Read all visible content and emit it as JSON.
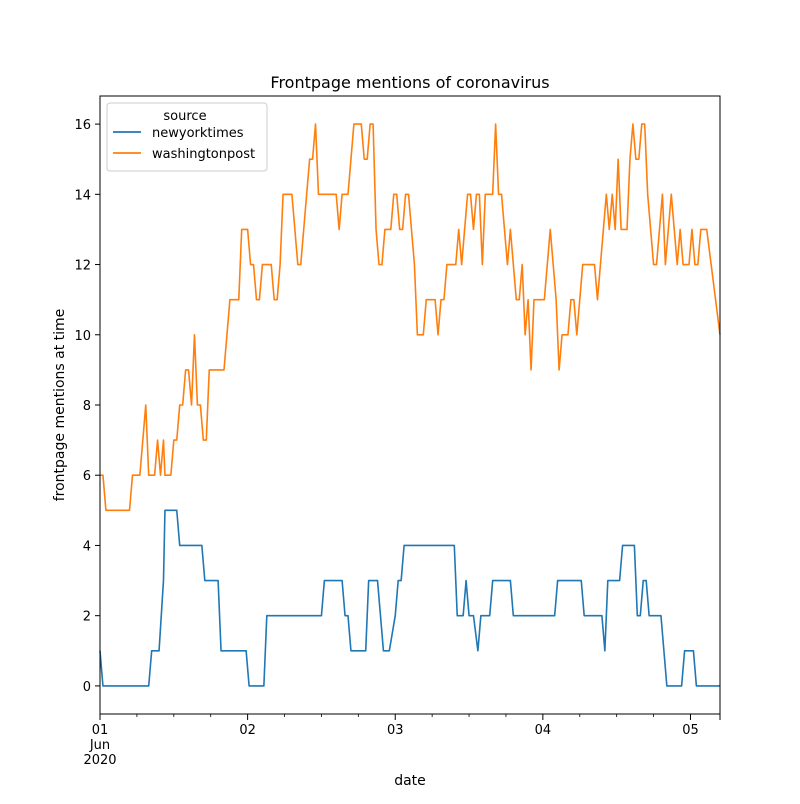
{
  "chart_data": {
    "type": "line",
    "title": "Frontpage mentions of coronavirus",
    "xlabel": "date",
    "ylabel": "frontpage mentions at time",
    "xlim": [
      0,
      4.2
    ],
    "ylim": [
      -0.8,
      16.8
    ],
    "grid": false,
    "legend": {
      "title": "source",
      "placement": "top-left",
      "entries": [
        "newyorktimes",
        "washingtonpost"
      ]
    },
    "x_ticks": [
      {
        "x": 0,
        "lines": [
          "01",
          "Jun",
          "2020"
        ]
      },
      {
        "x": 1,
        "lines": [
          "02"
        ]
      },
      {
        "x": 2,
        "lines": [
          "03"
        ]
      },
      {
        "x": 3,
        "lines": [
          "04"
        ]
      },
      {
        "x": 4,
        "lines": [
          "05"
        ]
      }
    ],
    "y_ticks": [
      0,
      2,
      4,
      6,
      8,
      10,
      12,
      14,
      16
    ],
    "series": [
      {
        "name": "newyorktimes",
        "color": "#1f77b4",
        "points": [
          [
            0.0,
            1
          ],
          [
            0.02,
            0
          ],
          [
            0.13,
            0
          ],
          [
            0.2,
            0
          ],
          [
            0.3,
            0
          ],
          [
            0.33,
            0
          ],
          [
            0.35,
            1
          ],
          [
            0.4,
            1
          ],
          [
            0.43,
            3
          ],
          [
            0.44,
            5
          ],
          [
            0.52,
            5
          ],
          [
            0.54,
            4
          ],
          [
            0.6,
            4
          ],
          [
            0.69,
            4
          ],
          [
            0.71,
            3
          ],
          [
            0.8,
            3
          ],
          [
            0.82,
            1
          ],
          [
            0.89,
            1
          ],
          [
            0.99,
            1
          ],
          [
            1.01,
            0
          ],
          [
            1.11,
            0
          ],
          [
            1.13,
            2
          ],
          [
            1.2,
            2
          ],
          [
            1.3,
            2
          ],
          [
            1.4,
            2
          ],
          [
            1.5,
            2
          ],
          [
            1.52,
            3
          ],
          [
            1.6,
            3
          ],
          [
            1.64,
            3
          ],
          [
            1.66,
            2
          ],
          [
            1.68,
            2
          ],
          [
            1.7,
            1
          ],
          [
            1.76,
            1
          ],
          [
            1.8,
            1
          ],
          [
            1.82,
            3
          ],
          [
            1.86,
            3
          ],
          [
            1.88,
            3
          ],
          [
            1.92,
            1
          ],
          [
            1.96,
            1
          ],
          [
            2.0,
            2
          ],
          [
            2.02,
            3
          ],
          [
            2.04,
            3
          ],
          [
            2.06,
            4
          ],
          [
            2.1,
            4
          ],
          [
            2.2,
            4
          ],
          [
            2.3,
            4
          ],
          [
            2.4,
            4
          ],
          [
            2.42,
            2
          ],
          [
            2.46,
            2
          ],
          [
            2.48,
            3
          ],
          [
            2.5,
            2
          ],
          [
            2.53,
            2
          ],
          [
            2.56,
            1
          ],
          [
            2.58,
            2
          ],
          [
            2.6,
            2
          ],
          [
            2.64,
            2
          ],
          [
            2.66,
            3
          ],
          [
            2.76,
            3
          ],
          [
            2.78,
            3
          ],
          [
            2.8,
            2
          ],
          [
            2.9,
            2
          ],
          [
            3.0,
            2
          ],
          [
            3.08,
            2
          ],
          [
            3.1,
            3
          ],
          [
            3.2,
            3
          ],
          [
            3.26,
            3
          ],
          [
            3.28,
            2
          ],
          [
            3.34,
            2
          ],
          [
            3.4,
            2
          ],
          [
            3.42,
            1
          ],
          [
            3.44,
            3
          ],
          [
            3.52,
            3
          ],
          [
            3.54,
            4
          ],
          [
            3.62,
            4
          ],
          [
            3.64,
            2
          ],
          [
            3.66,
            2
          ],
          [
            3.68,
            3
          ],
          [
            3.7,
            3
          ],
          [
            3.72,
            2
          ],
          [
            3.8,
            2
          ],
          [
            3.84,
            0
          ],
          [
            3.9,
            0
          ],
          [
            3.94,
            0
          ],
          [
            3.96,
            1
          ],
          [
            4.02,
            1
          ],
          [
            4.04,
            0
          ],
          [
            4.12,
            0
          ],
          [
            4.2,
            0
          ]
        ]
      },
      {
        "name": "washingtonpost",
        "color": "#ff7f0e",
        "points": [
          [
            0.0,
            6
          ],
          [
            0.02,
            6
          ],
          [
            0.04,
            5
          ],
          [
            0.1,
            5
          ],
          [
            0.2,
            5
          ],
          [
            0.22,
            6
          ],
          [
            0.27,
            6
          ],
          [
            0.31,
            8
          ],
          [
            0.33,
            6
          ],
          [
            0.37,
            6
          ],
          [
            0.39,
            7
          ],
          [
            0.41,
            6
          ],
          [
            0.43,
            7
          ],
          [
            0.44,
            6
          ],
          [
            0.48,
            6
          ],
          [
            0.5,
            7
          ],
          [
            0.52,
            7
          ],
          [
            0.54,
            8
          ],
          [
            0.56,
            8
          ],
          [
            0.58,
            9
          ],
          [
            0.6,
            9
          ],
          [
            0.62,
            8
          ],
          [
            0.64,
            10
          ],
          [
            0.66,
            8
          ],
          [
            0.68,
            8
          ],
          [
            0.7,
            7
          ],
          [
            0.72,
            7
          ],
          [
            0.74,
            9
          ],
          [
            0.84,
            9
          ],
          [
            0.88,
            11
          ],
          [
            0.94,
            11
          ],
          [
            0.96,
            13
          ],
          [
            1.0,
            13
          ],
          [
            1.02,
            12
          ],
          [
            1.04,
            12
          ],
          [
            1.06,
            11
          ],
          [
            1.08,
            11
          ],
          [
            1.1,
            12
          ],
          [
            1.16,
            12
          ],
          [
            1.18,
            11
          ],
          [
            1.2,
            11
          ],
          [
            1.22,
            12
          ],
          [
            1.24,
            14
          ],
          [
            1.3,
            14
          ],
          [
            1.32,
            13
          ],
          [
            1.34,
            12
          ],
          [
            1.36,
            12
          ],
          [
            1.38,
            13
          ],
          [
            1.42,
            15
          ],
          [
            1.44,
            15
          ],
          [
            1.46,
            16
          ],
          [
            1.48,
            14
          ],
          [
            1.6,
            14
          ],
          [
            1.62,
            13
          ],
          [
            1.64,
            14
          ],
          [
            1.68,
            14
          ],
          [
            1.72,
            16
          ],
          [
            1.77,
            16
          ],
          [
            1.79,
            15
          ],
          [
            1.81,
            15
          ],
          [
            1.83,
            16
          ],
          [
            1.85,
            16
          ],
          [
            1.87,
            13
          ],
          [
            1.89,
            12
          ],
          [
            1.91,
            12
          ],
          [
            1.93,
            13
          ],
          [
            1.97,
            13
          ],
          [
            1.99,
            14
          ],
          [
            2.01,
            14
          ],
          [
            2.03,
            13
          ],
          [
            2.05,
            13
          ],
          [
            2.07,
            14
          ],
          [
            2.09,
            14
          ],
          [
            2.11,
            13
          ],
          [
            2.13,
            12
          ],
          [
            2.15,
            10
          ],
          [
            2.19,
            10
          ],
          [
            2.21,
            11
          ],
          [
            2.27,
            11
          ],
          [
            2.29,
            10
          ],
          [
            2.31,
            11
          ],
          [
            2.33,
            11
          ],
          [
            2.35,
            12
          ],
          [
            2.41,
            12
          ],
          [
            2.43,
            13
          ],
          [
            2.45,
            12
          ],
          [
            2.49,
            14
          ],
          [
            2.51,
            14
          ],
          [
            2.53,
            13
          ],
          [
            2.55,
            14
          ],
          [
            2.57,
            14
          ],
          [
            2.59,
            12
          ],
          [
            2.61,
            14
          ],
          [
            2.66,
            14
          ],
          [
            2.68,
            16
          ],
          [
            2.7,
            14
          ],
          [
            2.72,
            14
          ],
          [
            2.74,
            13
          ],
          [
            2.76,
            12
          ],
          [
            2.78,
            13
          ],
          [
            2.8,
            12
          ],
          [
            2.82,
            11
          ],
          [
            2.84,
            11
          ],
          [
            2.86,
            12
          ],
          [
            2.88,
            10
          ],
          [
            2.9,
            11
          ],
          [
            2.92,
            9
          ],
          [
            2.94,
            11
          ],
          [
            3.01,
            11
          ],
          [
            3.03,
            12
          ],
          [
            3.05,
            13
          ],
          [
            3.07,
            12
          ],
          [
            3.09,
            11
          ],
          [
            3.11,
            9
          ],
          [
            3.13,
            10
          ],
          [
            3.17,
            10
          ],
          [
            3.19,
            11
          ],
          [
            3.21,
            11
          ],
          [
            3.23,
            10
          ],
          [
            3.25,
            11
          ],
          [
            3.27,
            12
          ],
          [
            3.35,
            12
          ],
          [
            3.37,
            11
          ],
          [
            3.39,
            12
          ],
          [
            3.41,
            13
          ],
          [
            3.43,
            14
          ],
          [
            3.45,
            13
          ],
          [
            3.47,
            14
          ],
          [
            3.49,
            13
          ],
          [
            3.51,
            15
          ],
          [
            3.53,
            13
          ],
          [
            3.57,
            13
          ],
          [
            3.59,
            15
          ],
          [
            3.61,
            16
          ],
          [
            3.63,
            15
          ],
          [
            3.65,
            15
          ],
          [
            3.67,
            16
          ],
          [
            3.69,
            16
          ],
          [
            3.71,
            14
          ],
          [
            3.73,
            13
          ],
          [
            3.75,
            12
          ],
          [
            3.77,
            12
          ],
          [
            3.79,
            13
          ],
          [
            3.81,
            14
          ],
          [
            3.83,
            12
          ],
          [
            3.85,
            13
          ],
          [
            3.87,
            14
          ],
          [
            3.89,
            13
          ],
          [
            3.91,
            12
          ],
          [
            3.93,
            13
          ],
          [
            3.95,
            12
          ],
          [
            3.99,
            12
          ],
          [
            4.01,
            13
          ],
          [
            4.03,
            12
          ],
          [
            4.05,
            12
          ],
          [
            4.07,
            13
          ],
          [
            4.09,
            13
          ],
          [
            4.11,
            13
          ],
          [
            4.2,
            10
          ]
        ]
      }
    ]
  }
}
